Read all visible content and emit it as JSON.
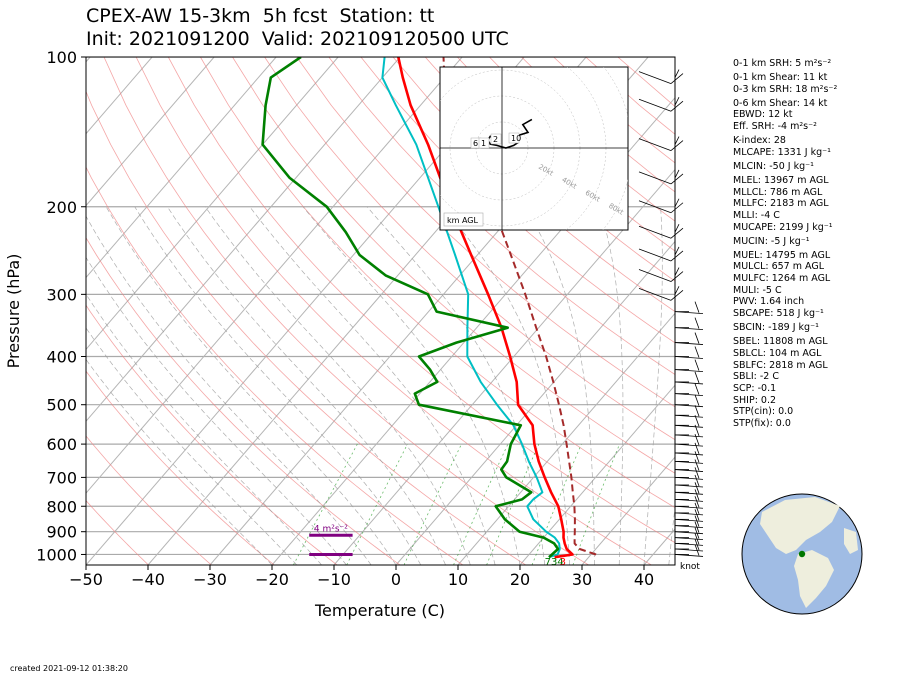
{
  "header": {
    "line1": "CPEX-AW 15-3km  5h fcst  Station: tt",
    "line2": "Init: 2021091200  Valid: 202109120500 UTC"
  },
  "created": "created 2021-09-12 01:38:20",
  "colors": {
    "temperature": "#ff0000",
    "dewpoint": "#008000",
    "wetbulb": "#00bfc4",
    "parcel": "#a52a2a",
    "dry_adiabat": "#f08080",
    "moist_adiabat": "#999999",
    "mixing_ratio": "#2ca02c",
    "srh": "#800080",
    "ocean": "#a0bce4",
    "land": "#eeeedd",
    "station_dot": "#007700"
  },
  "chart_data": {
    "type": "line",
    "xlabel": "Temperature (C)",
    "ylabel": "Pressure (hPa)",
    "xlim": [
      -50,
      45
    ],
    "ylim": [
      1050,
      100
    ],
    "yscale": "log",
    "xticks": [
      -50,
      -40,
      -30,
      -20,
      -10,
      0,
      10,
      20,
      30,
      40
    ],
    "yticks": [
      100,
      200,
      300,
      400,
      500,
      600,
      700,
      800,
      900,
      1000
    ],
    "grid": true,
    "series": [
      {
        "key": "temperature",
        "pressure": [
          1013,
          1000,
          975,
          950,
          925,
          900,
          850,
          800,
          750,
          700,
          650,
          600,
          550,
          500,
          450,
          400,
          350,
          300,
          250,
          200,
          150,
          125,
          110,
          100
        ],
        "values": [
          24.5,
          27.0,
          25.3,
          24.2,
          23.2,
          22.4,
          20.3,
          18.0,
          14.9,
          11.8,
          8.6,
          5.5,
          2.6,
          -2.6,
          -6.0,
          -10.6,
          -16.0,
          -22.8,
          -31.0,
          -41.0,
          -53.3,
          -61.6,
          -66.7,
          -70.3
        ]
      },
      {
        "key": "dewpoint",
        "pressure": [
          1013,
          1000,
          975,
          950,
          925,
          900,
          850,
          800,
          775,
          750,
          700,
          675,
          650,
          600,
          550,
          500,
          475,
          450,
          425,
          400,
          375,
          350,
          325,
          300,
          275,
          250,
          225,
          200,
          175,
          150,
          125,
          110,
          100
        ],
        "values": [
          23.6,
          23.7,
          23.9,
          22.5,
          20.0,
          15.3,
          11.2,
          7.9,
          11.2,
          11.7,
          5.6,
          3.7,
          3.5,
          1.7,
          0.7,
          -18.6,
          -20.8,
          -18.8,
          -21.7,
          -25.3,
          -21.2,
          -15.0,
          -28.7,
          -32.5,
          -41.9,
          -49.0,
          -54.4,
          -61.0,
          -71.0,
          -80.0,
          -85.0,
          -88.0,
          -86.0
        ]
      },
      {
        "key": "wetbulb",
        "pressure": [
          1013,
          1000,
          975,
          950,
          925,
          900,
          850,
          800,
          775,
          750,
          700,
          650,
          600,
          550,
          500,
          450,
          400,
          350,
          300,
          250,
          200,
          150,
          125,
          110,
          100
        ],
        "values": [
          23.6,
          24.6,
          24.2,
          23.3,
          21.8,
          19.6,
          15.8,
          13.0,
          13.0,
          13.5,
          10.5,
          7.0,
          3.5,
          -0.5,
          -6.0,
          -11.8,
          -17.5,
          -21.5,
          -26.0,
          -33.6,
          -43.0,
          -55.2,
          -64.0,
          -70.0,
          -72.5
        ]
      },
      {
        "key": "parcel",
        "pressure": [
          1000,
          975,
          950,
          925,
          900,
          850,
          800,
          750,
          700,
          650,
          600,
          550,
          500,
          450,
          400,
          350,
          300,
          250,
          200,
          150,
          125,
          110,
          100
        ],
        "values": [
          30.8,
          27.4,
          25.8,
          25.0,
          24.2,
          22.5,
          20.6,
          18.4,
          16.1,
          13.5,
          10.7,
          7.6,
          4.0,
          -0.1,
          -4.8,
          -10.4,
          -16.8,
          -24.6,
          -34.2,
          -47.0,
          -55.2,
          -60.0,
          -63.0
        ]
      }
    ],
    "surface_labels": [
      {
        "text": "734",
        "color": "#007700"
      },
      {
        "text": "3",
        "color": "#ff0000"
      }
    ],
    "srh_bars": [
      {
        "pressure": 915,
        "x_range": [
          -14,
          -7
        ],
        "label": "4 m²s⁻²"
      },
      {
        "pressure": 1000,
        "x_range": [
          -14,
          -7
        ]
      }
    ],
    "wind_unit_label": "knot",
    "wind_barbs_note": "wind barbs drawn at 100–1000 hPa along right edge",
    "hodograph": {
      "label": "km AGL",
      "ring_labels": [
        "20kt",
        "40kt",
        "60kt",
        "80kt"
      ],
      "height_labels": [
        "6",
        "1",
        "2",
        "10"
      ],
      "u": [
        -1.5,
        -3.0,
        -4.5,
        -5.5,
        -4.5,
        -2.0,
        1.5,
        4.5,
        6.0,
        3.5,
        10.0,
        8.0,
        11.5
      ],
      "v": [
        3.0,
        4.0,
        4.5,
        3.0,
        1.5,
        1.0,
        0.0,
        1.0,
        2.0,
        4.0,
        6.0,
        9.0,
        11.0
      ]
    }
  },
  "indices": [
    "0-1 km SRH: 5 m²s⁻²",
    "0-1 km Shear: 11 kt",
    "0-3 km SRH: 18 m²s⁻²",
    "0-6 km Shear: 14 kt",
    "EBWD: 12 kt",
    "Eff. SRH: -4 m²s⁻²",
    "K-index: 28",
    "MLCAPE: 1331 J kg⁻¹",
    "MLCIN: -50 J kg⁻¹",
    "MLEL: 13967 m AGL",
    "MLLCL: 786 m AGL",
    "MLLFC: 2183 m AGL",
    "MLLI: -4 C",
    "MUCAPE: 2199 J kg⁻¹",
    "MUCIN: -5 J kg⁻¹",
    "MUEL: 14795 m AGL",
    "MULCL: 657 m AGL",
    "MULFC: 1264 m AGL",
    "MULI: -5 C",
    "PWV: 1.64 inch",
    "SBCAPE: 518 J kg⁻¹",
    "SBCIN: -189 J kg⁻¹",
    "SBEL: 11808 m AGL",
    "SBLCL: 104 m AGL",
    "SBLFC: 2818 m AGL",
    "SBLI: -2 C",
    "SCP: -0.1",
    "SHIP: 0.2",
    "STP(cin): 0.0",
    "STP(fix): 0.0"
  ]
}
